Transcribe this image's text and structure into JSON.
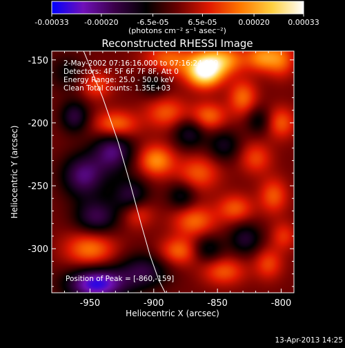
{
  "chart_data": {
    "type": "heatmap",
    "title": "Reconstructed RHESSI Image",
    "xlabel": "Heliocentric X (arcsec)",
    "ylabel": "Heliocentric Y (arcsec)",
    "x_range": [
      -980,
      -790
    ],
    "y_range": [
      -335,
      -143
    ],
    "x_ticks": [
      "-950",
      "-900",
      "-850",
      "-800"
    ],
    "x_tick_values": [
      -950,
      -900,
      -850,
      -800
    ],
    "y_ticks": [
      "-150",
      "-200",
      "-250",
      "-300"
    ],
    "y_tick_values": [
      -150,
      -200,
      -250,
      -300
    ],
    "colorbar": {
      "ticks": [
        "-0.00033",
        "-0.00020",
        "-6.5e-05",
        "6.5e-05",
        "0.00020",
        "0.00033"
      ],
      "tick_values": [
        -0.00033,
        -0.0002,
        -6.5e-05,
        6.5e-05,
        0.0002,
        0.00033
      ],
      "range": [
        -0.00033,
        0.00033
      ],
      "unit_label": "(photons cm⁻² s⁻¹ asec⁻²)",
      "gradient_colors": [
        "#0000ff",
        "#7010b8",
        "#3a0048",
        "#000000",
        "#6a0000",
        "#e01800",
        "#ff7800",
        "#ffd040",
        "#ffffff"
      ]
    },
    "info_lines": [
      " 2-May-2002 07:16:16.000 to 07:16:24.000",
      "Detectors: 4F 5F 6F 7F 8F, Att 0",
      "Energy Range: 25.0 - 50.0 keV",
      "Clean    Total counts: 1.35E+03"
    ],
    "peak_label": "Position of Peak = [-860,-159]",
    "peak_position": [
      -860,
      -159
    ],
    "limb_curve": {
      "x": [
        -955,
        -940,
        -928,
        -918,
        -910,
        -903,
        -896,
        -891
      ],
      "y": [
        -143,
        -180,
        -215,
        -250,
        -280,
        -305,
        -325,
        -335
      ]
    },
    "blobs": [
      {
        "x": -860,
        "y": -159,
        "sx": 10,
        "sy": 9,
        "a": 1.0
      },
      {
        "x": -845,
        "y": -150,
        "sx": 12,
        "sy": 8,
        "a": 0.55
      },
      {
        "x": -888,
        "y": -150,
        "sx": 14,
        "sy": 9,
        "a": 0.45
      },
      {
        "x": -815,
        "y": -148,
        "sx": 9,
        "sy": 8,
        "a": 0.5
      },
      {
        "x": -800,
        "y": -150,
        "sx": 8,
        "sy": 10,
        "a": 0.4
      },
      {
        "x": -830,
        "y": -180,
        "sx": 8,
        "sy": 10,
        "a": 0.45
      },
      {
        "x": -857,
        "y": -195,
        "sx": 10,
        "sy": 8,
        "a": 0.45
      },
      {
        "x": -890,
        "y": -192,
        "sx": 12,
        "sy": 9,
        "a": 0.4
      },
      {
        "x": -930,
        "y": -202,
        "sx": 12,
        "sy": 8,
        "a": 0.55
      },
      {
        "x": -945,
        "y": -170,
        "sx": 9,
        "sy": 8,
        "a": 0.35
      },
      {
        "x": -800,
        "y": -200,
        "sx": 8,
        "sy": 9,
        "a": 0.4
      },
      {
        "x": -898,
        "y": -230,
        "sx": 10,
        "sy": 9,
        "a": 0.55
      },
      {
        "x": -865,
        "y": -240,
        "sx": 12,
        "sy": 10,
        "a": 0.4
      },
      {
        "x": -820,
        "y": -228,
        "sx": 9,
        "sy": 9,
        "a": 0.35
      },
      {
        "x": -806,
        "y": -258,
        "sx": 8,
        "sy": 10,
        "a": 0.4
      },
      {
        "x": -836,
        "y": -268,
        "sx": 10,
        "sy": 8,
        "a": 0.4
      },
      {
        "x": -868,
        "y": -278,
        "sx": 12,
        "sy": 9,
        "a": 0.45
      },
      {
        "x": -913,
        "y": -272,
        "sx": 9,
        "sy": 8,
        "a": 0.35
      },
      {
        "x": -950,
        "y": -300,
        "sx": 14,
        "sy": 10,
        "a": 0.5
      },
      {
        "x": -880,
        "y": -302,
        "sx": 11,
        "sy": 8,
        "a": 0.45
      },
      {
        "x": -845,
        "y": -318,
        "sx": 12,
        "sy": 8,
        "a": 0.4
      },
      {
        "x": -810,
        "y": -312,
        "sx": 8,
        "sy": 9,
        "a": 0.35
      },
      {
        "x": -798,
        "y": -290,
        "sx": 7,
        "sy": 8,
        "a": 0.3
      },
      {
        "x": -962,
        "y": -195,
        "sx": 8,
        "sy": 9,
        "a": -0.45
      },
      {
        "x": -932,
        "y": -222,
        "sx": 11,
        "sy": 12,
        "a": -0.6
      },
      {
        "x": -955,
        "y": -242,
        "sx": 12,
        "sy": 12,
        "a": -0.6
      },
      {
        "x": -945,
        "y": -275,
        "sx": 12,
        "sy": 10,
        "a": -0.5
      },
      {
        "x": -918,
        "y": -258,
        "sx": 10,
        "sy": 10,
        "a": -0.45
      },
      {
        "x": -908,
        "y": -318,
        "sx": 14,
        "sy": 10,
        "a": -0.45
      },
      {
        "x": -945,
        "y": -328,
        "sx": 16,
        "sy": 9,
        "a": -0.9
      },
      {
        "x": -872,
        "y": -208,
        "sx": 9,
        "sy": 9,
        "a": -0.4
      },
      {
        "x": -845,
        "y": -218,
        "sx": 9,
        "sy": 9,
        "a": -0.35
      },
      {
        "x": -878,
        "y": -258,
        "sx": 8,
        "sy": 8,
        "a": -0.35
      },
      {
        "x": -828,
        "y": -292,
        "sx": 9,
        "sy": 9,
        "a": -0.4
      },
      {
        "x": -858,
        "y": -300,
        "sx": 9,
        "sy": 8,
        "a": -0.35
      },
      {
        "x": -818,
        "y": -198,
        "sx": 7,
        "sy": 8,
        "a": -0.3
      },
      {
        "x": -968,
        "y": -160,
        "sx": 10,
        "sy": 10,
        "a": -0.25
      },
      {
        "x": -900,
        "y": -168,
        "sx": 8,
        "sy": 8,
        "a": -0.3
      }
    ]
  },
  "footer": {
    "timestamp": "13-Apr-2013 14:25"
  }
}
